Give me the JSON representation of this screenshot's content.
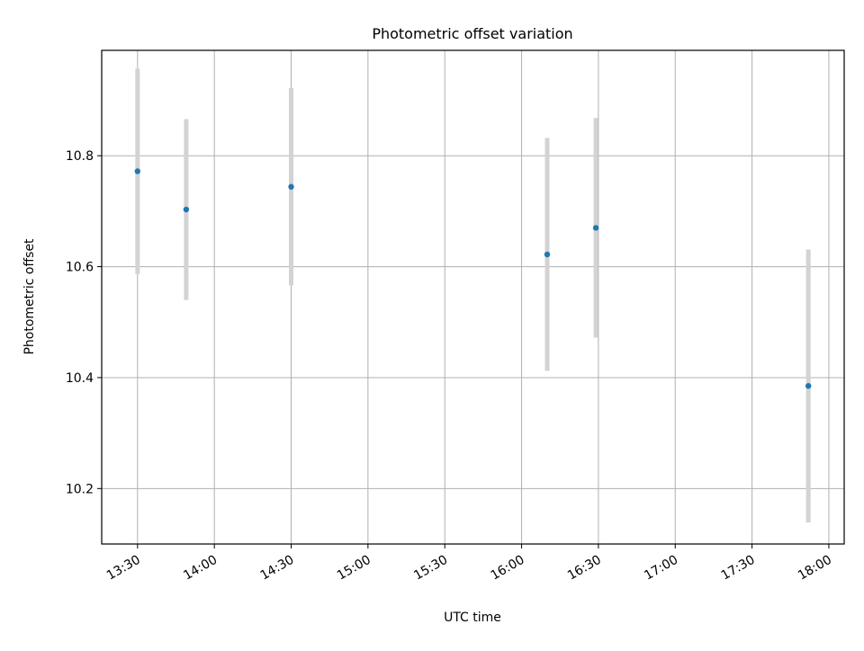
{
  "chart_data": {
    "type": "scatter",
    "title": "Photometric offset variation",
    "xlabel": "UTC time",
    "ylabel": "Photometric offset",
    "x_ticks": [
      "13:30",
      "14:00",
      "14:30",
      "15:00",
      "15:30",
      "16:00",
      "16:30",
      "17:00",
      "17:30",
      "18:00"
    ],
    "y_ticks": [
      "10.2",
      "10.4",
      "10.6",
      "10.8"
    ],
    "xlim": [
      "13:16",
      "18:06"
    ],
    "ylim": [
      10.1,
      10.99
    ],
    "grid": true,
    "series": [
      {
        "marker_color": "#1f77b4",
        "errorbar_color": "#d3d3d3",
        "points": [
          {
            "x": "13:30",
            "y": 10.772,
            "yerr": 0.185
          },
          {
            "x": "13:49",
            "y": 10.703,
            "yerr": 0.163
          },
          {
            "x": "14:30",
            "y": 10.744,
            "yerr": 0.178
          },
          {
            "x": "16:10",
            "y": 10.622,
            "yerr": 0.21
          },
          {
            "x": "16:29",
            "y": 10.67,
            "yerr": 0.198
          },
          {
            "x": "17:52",
            "y": 10.385,
            "yerr": 0.246
          }
        ]
      }
    ]
  }
}
